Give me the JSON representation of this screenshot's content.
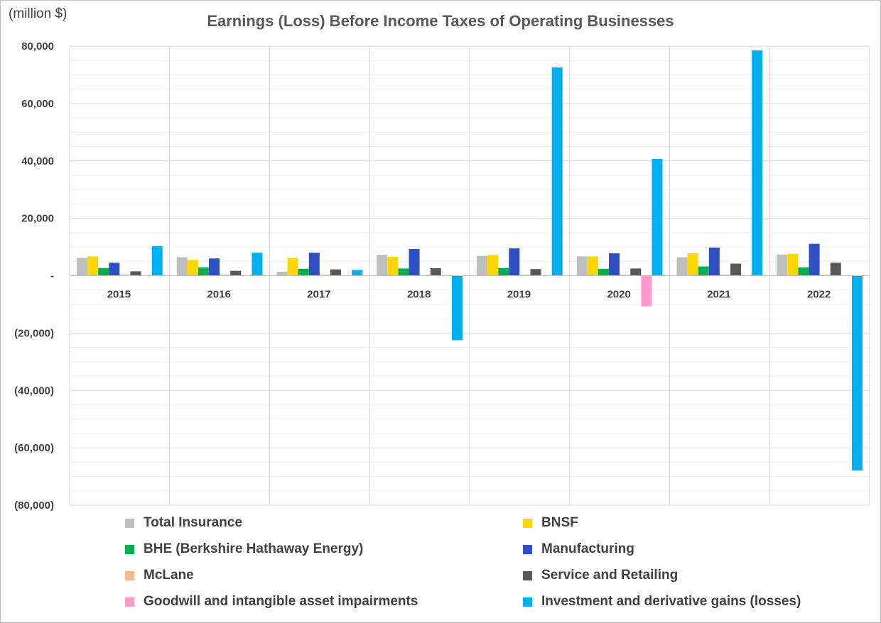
{
  "unit_label": "(million $)",
  "colors": {
    "total_insurance": "#bfbfbf",
    "bnsf": "#ffd700",
    "bhe": "#00b050",
    "manufacturing": "#2e50c2",
    "mclane": "#f8b98c",
    "service_retailing": "#595959",
    "goodwill": "#ff99cc",
    "investment": "#00b0f0"
  },
  "chart_data": {
    "type": "bar",
    "title": "Earnings (Loss) Before Income Taxes of Operating Businesses",
    "ylabel": "(million $)",
    "xlabel": "",
    "ylim": [
      -80000,
      80000
    ],
    "ytick_values": [
      80000,
      60000,
      40000,
      20000,
      0,
      -20000,
      -40000,
      -60000,
      -80000
    ],
    "ytick_labels": [
      "80,000",
      "60,000",
      "40,000",
      "20,000",
      "-",
      "(20,000)",
      "(40,000)",
      "(60,000)",
      "(80,000)"
    ],
    "grid": true,
    "legend_position": "bottom",
    "categories": [
      "2015",
      "2016",
      "2017",
      "2018",
      "2019",
      "2020",
      "2021",
      "2022"
    ],
    "series": [
      {
        "name": "Total Insurance",
        "color": "#bfbfbf",
        "values": [
          6200,
          6400,
          1400,
          7300,
          6900,
          6700,
          6400,
          7400
        ]
      },
      {
        "name": "BNSF",
        "color": "#ffd700",
        "values": [
          6700,
          5500,
          6100,
          6600,
          7200,
          6700,
          7800,
          7600
        ]
      },
      {
        "name": "BHE (Berkshire Hathaway Energy)",
        "color": "#00b050",
        "values": [
          2600,
          2900,
          2400,
          2500,
          2600,
          2400,
          3200,
          2900
        ]
      },
      {
        "name": "Manufacturing",
        "color": "#2e50c2",
        "values": [
          4500,
          6000,
          8000,
          9300,
          9500,
          7800,
          9800,
          11100
        ]
      },
      {
        "name": "McLane",
        "color": "#f8b98c",
        "values": [
          400,
          400,
          300,
          200,
          300,
          300,
          300,
          300
        ]
      },
      {
        "name": "Service and Retailing",
        "color": "#595959",
        "values": [
          1500,
          1700,
          2200,
          2600,
          2300,
          2500,
          4200,
          4500
        ]
      },
      {
        "name": "Goodwill and intangible asset impairments",
        "color": "#ff99cc",
        "values": [
          0,
          0,
          0,
          0,
          0,
          -10700,
          0,
          0
        ]
      },
      {
        "name": "Investment and derivative gains (losses)",
        "color": "#00b0f0",
        "values": [
          10300,
          8000,
          2000,
          -22500,
          72600,
          40700,
          78500,
          -67900
        ]
      }
    ]
  }
}
